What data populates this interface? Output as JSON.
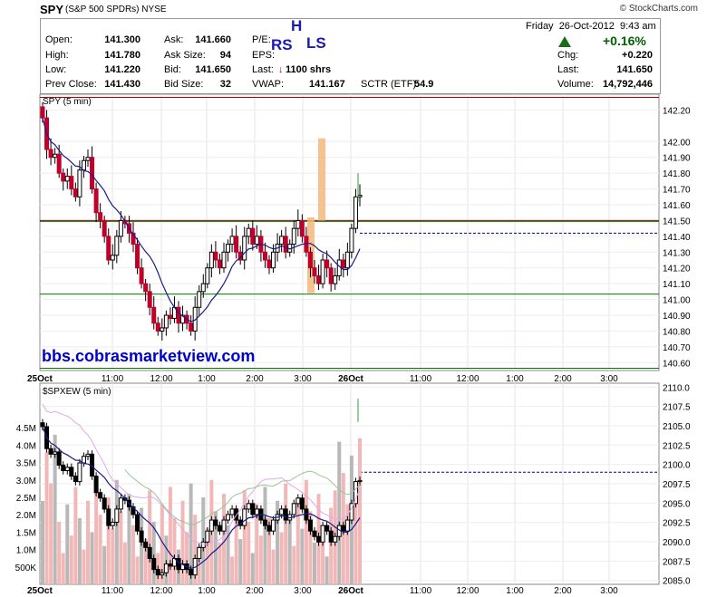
{
  "header": {
    "symbol": "SPY",
    "description": "(S&P 500 SPDRs)",
    "exchange": "NYSE",
    "credit": "© StockCharts.com"
  },
  "quote": {
    "open_label": "Open:",
    "open": "141.300",
    "high_label": "High:",
    "high": "141.780",
    "low_label": "Low:",
    "low": "141.220",
    "prev_close_label": "Prev Close:",
    "prev_close": "141.430",
    "ask_label": "Ask:",
    "ask": "141.660",
    "ask_size_label": "Ask Size:",
    "ask_size": "94",
    "bid_label": "Bid:",
    "bid": "141.650",
    "bid_size_label": "Bid Size:",
    "bid_size": "32",
    "pe_label": "P/E:",
    "eps_label": "EPS:",
    "last_shares_label": "Last:",
    "last_shares": "1100 shrs",
    "vwap_label": "VWAP:",
    "vwap": "141.167",
    "sctr_label": "SCTR (ETF):",
    "sctr": "54.9",
    "day": "Friday",
    "date": "26-Oct-2012",
    "time": "9:43 am",
    "change_pct": "+0.16%",
    "chg_label": "Chg:",
    "chg": "+0.220",
    "last_label": "Last:",
    "last": "141.650",
    "volume_label": "Volume:",
    "volume": "14,792,446"
  },
  "annotations": {
    "head": "H",
    "right_shoulder": "RS",
    "left_shoulder": "LS"
  },
  "watermark": "bbs.cobrasmarketview.com",
  "chart_data": [
    {
      "type": "candlestick",
      "title": "SPY (5 min)",
      "ylim": [
        140.55,
        142.3
      ],
      "y_ticks": [
        "142.20",
        "142.00",
        "141.90",
        "141.80",
        "141.70",
        "141.60",
        "141.50",
        "141.40",
        "141.30",
        "141.20",
        "141.10",
        "141.00",
        "140.90",
        "140.80",
        "140.70",
        "140.60"
      ],
      "x_labels": [
        "25Oct",
        "11:00",
        "12:00",
        "1:00",
        "2:00",
        "3:00",
        "26Oct",
        "11:00",
        "12:00",
        "1:00",
        "2:00",
        "3:00"
      ],
      "horizontal_lines": {
        "red": [
          142.28,
          141.5
        ],
        "green": [
          141.5,
          141.04,
          140.57
        ],
        "dashed_blue": 141.42
      },
      "closes": [
        142.15,
        141.95,
        141.9,
        141.92,
        141.8,
        141.75,
        141.78,
        141.7,
        141.65,
        141.82,
        141.88,
        141.9,
        141.7,
        141.55,
        141.5,
        141.4,
        141.25,
        141.28,
        141.4,
        141.5,
        141.48,
        141.42,
        141.35,
        141.2,
        141.1,
        141.05,
        140.95,
        140.85,
        140.8,
        140.82,
        140.9,
        140.88,
        140.95,
        140.85,
        140.9,
        140.85,
        140.8,
        140.95,
        141.05,
        141.1,
        141.2,
        141.3,
        141.25,
        141.2,
        141.3,
        141.35,
        141.4,
        141.3,
        141.25,
        141.4,
        141.45,
        141.35,
        141.4,
        141.3,
        141.25,
        141.2,
        141.3,
        141.35,
        141.4,
        141.3,
        141.35,
        141.45,
        141.5,
        141.4,
        141.3,
        141.2,
        141.15,
        141.1,
        141.25,
        141.2,
        141.1,
        141.15,
        141.25,
        141.2,
        141.3,
        141.45,
        141.65,
        141.66
      ]
    },
    {
      "type": "candlestick",
      "title": "$SPXEW (5 min)",
      "ylim": [
        2084.5,
        2110.5
      ],
      "y_ticks": [
        "2110.0",
        "2107.5",
        "2105.0",
        "2102.5",
        "2100.0",
        "2097.5",
        "2095.0",
        "2092.5",
        "2090.0",
        "2087.5",
        "2085.0"
      ],
      "volume_ticks": [
        "4.5M",
        "4.0M",
        "3.5M",
        "3.0M",
        "2.5M",
        "2.0M",
        "1.5M",
        "1.0M",
        "500K"
      ],
      "x_labels": [
        "25Oct",
        "11:00",
        "12:00",
        "1:00",
        "2:00",
        "3:00",
        "26Oct",
        "11:00",
        "12:00",
        "1:00",
        "2:00",
        "3:00"
      ],
      "dashed_blue": 2099.0
    }
  ]
}
